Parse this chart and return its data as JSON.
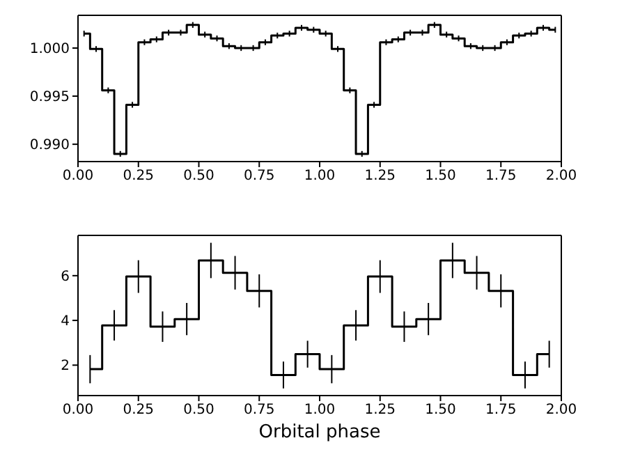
{
  "chart_data": [
    {
      "type": "step",
      "color": "#000000",
      "x": [
        0.025,
        0.075,
        0.125,
        0.175,
        0.225,
        0.275,
        0.325,
        0.375,
        0.425,
        0.475,
        0.525,
        0.575,
        0.625,
        0.675,
        0.725,
        0.775,
        0.825,
        0.875,
        0.925,
        0.975,
        1.025,
        1.075,
        1.125,
        1.175,
        1.225,
        1.275,
        1.325,
        1.375,
        1.425,
        1.475,
        1.525,
        1.575,
        1.625,
        1.675,
        1.725,
        1.775,
        1.825,
        1.875,
        1.925,
        1.975
      ],
      "values": [
        1.0015,
        0.9999,
        0.9956,
        0.989,
        0.9941,
        1.0006,
        1.0009,
        1.0016,
        1.0016,
        1.0024,
        1.0014,
        1.001,
        1.0002,
        1.0,
        1.0,
        1.0006,
        1.0013,
        1.0015,
        1.0021,
        1.0019,
        1.0015,
        0.9999,
        0.9956,
        0.989,
        0.9941,
        1.0006,
        1.0009,
        1.0016,
        1.0016,
        1.0024,
        1.0014,
        1.001,
        1.0002,
        1.0,
        1.0,
        1.0006,
        1.0013,
        1.0015,
        1.0021,
        1.0019
      ],
      "errors": [
        0.0003,
        0.0003,
        0.0003,
        0.0003,
        0.0003,
        0.0003,
        0.0003,
        0.0003,
        0.0003,
        0.0003,
        0.0003,
        0.0003,
        0.0003,
        0.0003,
        0.0003,
        0.0003,
        0.0003,
        0.0003,
        0.0003,
        0.0003,
        0.0003,
        0.0003,
        0.0003,
        0.0003,
        0.0003,
        0.0003,
        0.0003,
        0.0003,
        0.0003,
        0.0003,
        0.0003,
        0.0003,
        0.0003,
        0.0003,
        0.0003,
        0.0003,
        0.0003,
        0.0003,
        0.0003,
        0.0003
      ],
      "xlim": [
        0,
        2
      ],
      "ylim": [
        0.9882,
        1.0034
      ],
      "xticks": [
        {
          "value": 0,
          "label": "0.00"
        },
        {
          "value": 0.25,
          "label": "0.25"
        },
        {
          "value": 0.5,
          "label": "0.50"
        },
        {
          "value": 0.75,
          "label": "0.75"
        },
        {
          "value": 1,
          "label": "1.00"
        },
        {
          "value": 1.25,
          "label": "1.25"
        },
        {
          "value": 1.5,
          "label": "1.50"
        },
        {
          "value": 1.75,
          "label": "1.75"
        },
        {
          "value": 2,
          "label": "2.00"
        }
      ],
      "yticks": [
        {
          "value": 0.99,
          "label": "0.990"
        },
        {
          "value": 0.995,
          "label": "0.995"
        },
        {
          "value": 1,
          "label": "1.000"
        }
      ]
    },
    {
      "type": "step",
      "color": "#000000",
      "xlabel": "Orbital phase",
      "x": [
        0.05,
        0.15,
        0.25,
        0.35,
        0.45,
        0.55,
        0.65,
        0.75,
        0.85,
        0.95,
        1.05,
        1.15,
        1.25,
        1.35,
        1.45,
        1.55,
        1.65,
        1.75,
        1.85,
        1.95
      ],
      "values": [
        1.82,
        3.78,
        5.96,
        3.72,
        4.06,
        6.68,
        6.13,
        5.32,
        1.56,
        2.49,
        1.82,
        3.78,
        5.96,
        3.72,
        4.06,
        6.68,
        6.13,
        5.32,
        1.56,
        2.49
      ],
      "errors": [
        0.63,
        0.68,
        0.73,
        0.68,
        0.72,
        0.79,
        0.75,
        0.74,
        0.6,
        0.6,
        0.63,
        0.68,
        0.73,
        0.68,
        0.72,
        0.79,
        0.75,
        0.74,
        0.6,
        0.6
      ],
      "xlim": [
        0,
        2
      ],
      "ylim": [
        0.64,
        7.8
      ],
      "xticks": [
        {
          "value": 0,
          "label": "0.00"
        },
        {
          "value": 0.25,
          "label": "0.25"
        },
        {
          "value": 0.5,
          "label": "0.50"
        },
        {
          "value": 0.75,
          "label": "0.75"
        },
        {
          "value": 1,
          "label": "1.00"
        },
        {
          "value": 1.25,
          "label": "1.25"
        },
        {
          "value": 1.5,
          "label": "1.50"
        },
        {
          "value": 1.75,
          "label": "1.75"
        },
        {
          "value": 2,
          "label": "2.00"
        }
      ],
      "yticks": [
        2,
        4,
        6
      ]
    }
  ]
}
